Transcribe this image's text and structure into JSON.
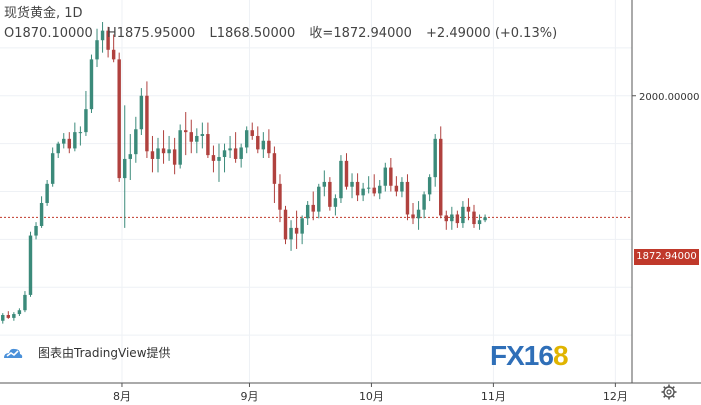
{
  "header": {
    "title": "现货黄金, 1D",
    "open": "O1870.10000",
    "high": "H1875.95000",
    "low": "L1868.50000",
    "close": "收=1872.94000",
    "change": "+2.49000 (+0.13%)"
  },
  "watermark": {
    "text": "图表由TradingView提供"
  },
  "brand": {
    "prefix": "FX16",
    "suffix": "8"
  },
  "colors": {
    "up": "#3b8a7a",
    "down": "#b0413e",
    "grid": "#eef1f5",
    "price_line": "#c0392b"
  },
  "chart_data": {
    "type": "candlestick",
    "y_tick_labels": [
      "2000.00000"
    ],
    "y_ticks": [
      2000
    ],
    "ylim": [
      1700,
      2100
    ],
    "last_price": 1872.94,
    "last_price_label": "1872.94000",
    "x_tick_labels": [
      "8月",
      "9月",
      "10月",
      "11月",
      "12月"
    ],
    "x_tick_index": [
      22,
      45,
      67,
      89,
      111
    ],
    "xlim_index": [
      0,
      114
    ],
    "candles": [
      [
        1765,
        1773,
        1762,
        1771
      ],
      [
        1771,
        1775,
        1767,
        1768
      ],
      [
        1768,
        1774,
        1765,
        1772
      ],
      [
        1772,
        1778,
        1770,
        1776
      ],
      [
        1776,
        1796,
        1774,
        1792
      ],
      [
        1792,
        1858,
        1790,
        1854
      ],
      [
        1854,
        1868,
        1850,
        1864
      ],
      [
        1864,
        1895,
        1862,
        1888
      ],
      [
        1888,
        1912,
        1885,
        1908
      ],
      [
        1908,
        1946,
        1905,
        1940
      ],
      [
        1940,
        1952,
        1935,
        1950
      ],
      [
        1950,
        1961,
        1945,
        1955
      ],
      [
        1955,
        1962,
        1940,
        1945
      ],
      [
        1945,
        1972,
        1942,
        1962
      ],
      [
        1962,
        1968,
        1948,
        1962
      ],
      [
        1962,
        2005,
        1958,
        1986
      ],
      [
        1986,
        2043,
        1982,
        2038
      ],
      [
        2038,
        2070,
        2030,
        2058
      ],
      [
        2058,
        2077,
        2045,
        2068
      ],
      [
        2068,
        2072,
        2040,
        2048
      ],
      [
        2048,
        2064,
        2035,
        2038
      ],
      [
        2038,
        2045,
        1910,
        1914
      ],
      [
        1914,
        1990,
        1862,
        1934
      ],
      [
        1934,
        1960,
        1912,
        1939
      ],
      [
        1939,
        1978,
        1930,
        1965
      ],
      [
        1965,
        2008,
        1959,
        2000
      ],
      [
        2000,
        2015,
        1935,
        1942
      ],
      [
        1942,
        1958,
        1920,
        1934
      ],
      [
        1934,
        1956,
        1920,
        1945
      ],
      [
        1945,
        1964,
        1929,
        1940
      ],
      [
        1940,
        1958,
        1932,
        1944
      ],
      [
        1944,
        1956,
        1918,
        1928
      ],
      [
        1928,
        1970,
        1924,
        1964
      ],
      [
        1964,
        1983,
        1938,
        1962
      ],
      [
        1962,
        1975,
        1940,
        1952
      ],
      [
        1952,
        1966,
        1940,
        1958
      ],
      [
        1958,
        1972,
        1945,
        1960
      ],
      [
        1960,
        1972,
        1935,
        1938
      ],
      [
        1938,
        1948,
        1920,
        1932
      ],
      [
        1932,
        1950,
        1910,
        1936
      ],
      [
        1936,
        1950,
        1920,
        1943
      ],
      [
        1943,
        1958,
        1935,
        1945
      ],
      [
        1945,
        1962,
        1930,
        1934
      ],
      [
        1934,
        1950,
        1925,
        1946
      ],
      [
        1946,
        1968,
        1940,
        1964
      ],
      [
        1964,
        1972,
        1954,
        1958
      ],
      [
        1958,
        1968,
        1940,
        1944
      ],
      [
        1944,
        1962,
        1935,
        1953
      ],
      [
        1953,
        1965,
        1935,
        1940
      ],
      [
        1940,
        1947,
        1888,
        1908
      ],
      [
        1908,
        1918,
        1868,
        1881
      ],
      [
        1881,
        1885,
        1845,
        1850
      ],
      [
        1850,
        1870,
        1838,
        1862
      ],
      [
        1862,
        1880,
        1840,
        1856
      ],
      [
        1856,
        1875,
        1845,
        1872
      ],
      [
        1872,
        1890,
        1865,
        1886
      ],
      [
        1886,
        1900,
        1870,
        1879
      ],
      [
        1879,
        1908,
        1872,
        1905
      ],
      [
        1905,
        1922,
        1895,
        1910
      ],
      [
        1910,
        1915,
        1880,
        1884
      ],
      [
        1884,
        1897,
        1875,
        1893
      ],
      [
        1893,
        1938,
        1888,
        1932
      ],
      [
        1932,
        1940,
        1902,
        1905
      ],
      [
        1905,
        1919,
        1893,
        1910
      ],
      [
        1910,
        1919,
        1890,
        1896
      ],
      [
        1896,
        1909,
        1890,
        1903
      ],
      [
        1903,
        1916,
        1898,
        1904
      ],
      [
        1904,
        1918,
        1895,
        1898
      ],
      [
        1898,
        1912,
        1892,
        1906
      ],
      [
        1906,
        1930,
        1900,
        1925
      ],
      [
        1925,
        1935,
        1900,
        1906
      ],
      [
        1906,
        1916,
        1895,
        1900
      ],
      [
        1900,
        1915,
        1894,
        1910
      ],
      [
        1910,
        1918,
        1870,
        1876
      ],
      [
        1876,
        1888,
        1866,
        1872
      ],
      [
        1872,
        1890,
        1860,
        1881
      ],
      [
        1881,
        1900,
        1872,
        1897
      ],
      [
        1897,
        1918,
        1890,
        1915
      ],
      [
        1915,
        1960,
        1905,
        1955
      ],
      [
        1955,
        1968,
        1872,
        1875
      ],
      [
        1875,
        1880,
        1860,
        1869
      ],
      [
        1869,
        1884,
        1860,
        1876
      ],
      [
        1876,
        1880,
        1862,
        1867
      ],
      [
        1867,
        1890,
        1862,
        1884
      ],
      [
        1884,
        1893,
        1870,
        1879
      ],
      [
        1879,
        1886,
        1862,
        1866
      ],
      [
        1866,
        1876,
        1860,
        1870
      ],
      [
        1870,
        1876,
        1868,
        1873
      ]
    ]
  }
}
